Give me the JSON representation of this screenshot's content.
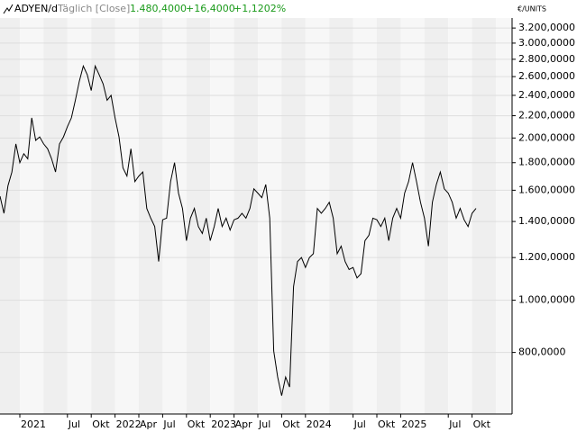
{
  "chart_data": {
    "type": "line",
    "title": "ADYEN/d",
    "subtitle": "Täglich [Close]",
    "annotations": [
      "1.480,4000",
      "+16,4000",
      "+1,1202%"
    ],
    "y_label": "€/UNITS",
    "log_scale": true,
    "grid": true,
    "categories": [
      null,
      null,
      null,
      null,
      null,
      "2021",
      null,
      null,
      null,
      null,
      null,
      null,
      null,
      null,
      null,
      null,
      null,
      "Jul",
      null,
      null,
      null,
      null,
      null,
      "Okt",
      null,
      null,
      null,
      null,
      null,
      "2022",
      null,
      null,
      null,
      null,
      null,
      "Apr",
      null,
      null,
      null,
      null,
      null,
      "Jul",
      null,
      null,
      null,
      null,
      null,
      "Okt",
      null,
      null,
      null,
      null,
      null,
      "2023",
      null,
      null,
      null,
      null,
      null,
      "Apr",
      null,
      null,
      null,
      null,
      null,
      "Jul",
      null,
      null,
      null,
      null,
      null,
      "Okt",
      null,
      null,
      null,
      null,
      null,
      "2024",
      null,
      null,
      null,
      null,
      null,
      null,
      null,
      null,
      null,
      null,
      null,
      "Jul",
      null,
      null,
      null,
      null,
      null,
      "Okt",
      null,
      null,
      null,
      null,
      null,
      "2025",
      null,
      null,
      null,
      null,
      null,
      null,
      null,
      null,
      null,
      null,
      null,
      "Jul",
      null,
      null,
      null,
      null,
      null,
      "Okt",
      null
    ],
    "series": [
      {
        "name": "ADYEN",
        "color": "#000000",
        "values": [
          1560,
          1450,
          1630,
          1730,
          1950,
          1800,
          1870,
          1830,
          2180,
          1980,
          2010,
          1950,
          1910,
          1830,
          1730,
          1950,
          2010,
          2100,
          2180,
          2350,
          2550,
          2720,
          2620,
          2450,
          2720,
          2620,
          2520,
          2350,
          2400,
          2180,
          2010,
          1760,
          1700,
          1910,
          1660,
          1700,
          1730,
          1480,
          1420,
          1370,
          1180,
          1410,
          1420,
          1660,
          1800,
          1580,
          1480,
          1290,
          1420,
          1480,
          1370,
          1330,
          1420,
          1290,
          1370,
          1480,
          1370,
          1420,
          1350,
          1410,
          1420,
          1450,
          1420,
          1480,
          1610,
          1580,
          1550,
          1640,
          1420,
          805,
          720,
          665,
          720,
          690,
          1060,
          1180,
          1200,
          1150,
          1200,
          1220,
          1480,
          1450,
          1480,
          1520,
          1420,
          1220,
          1260,
          1180,
          1140,
          1150,
          1100,
          1120,
          1290,
          1320,
          1420,
          1410,
          1370,
          1420,
          1290,
          1420,
          1480,
          1420,
          1580,
          1660,
          1800,
          1660,
          1520,
          1420,
          1260,
          1520,
          1640,
          1730,
          1610,
          1580,
          1520,
          1420,
          1480,
          1410,
          1370,
          1450,
          1480
        ]
      }
    ],
    "ylim": [
      615,
      3340
    ],
    "yticks": [
      {
        "value": 800,
        "label": "800,0000"
      },
      {
        "value": 1000,
        "label": "1.000,0000"
      },
      {
        "value": 1200,
        "label": "1.200,0000"
      },
      {
        "value": 1400,
        "label": "1.400,0000"
      },
      {
        "value": 1600,
        "label": "1.600,0000"
      },
      {
        "value": 1800,
        "label": "1.800,0000"
      },
      {
        "value": 2000,
        "label": "2.000,0000"
      },
      {
        "value": 2200,
        "label": "2.200,0000"
      },
      {
        "value": 2400,
        "label": "2.400,0000"
      },
      {
        "value": 2600,
        "label": "2.600,0000"
      },
      {
        "value": 2800,
        "label": "2.800,0000"
      },
      {
        "value": 3000,
        "label": "3.000,0000"
      },
      {
        "value": 3200,
        "label": "3.200,0000"
      }
    ]
  }
}
